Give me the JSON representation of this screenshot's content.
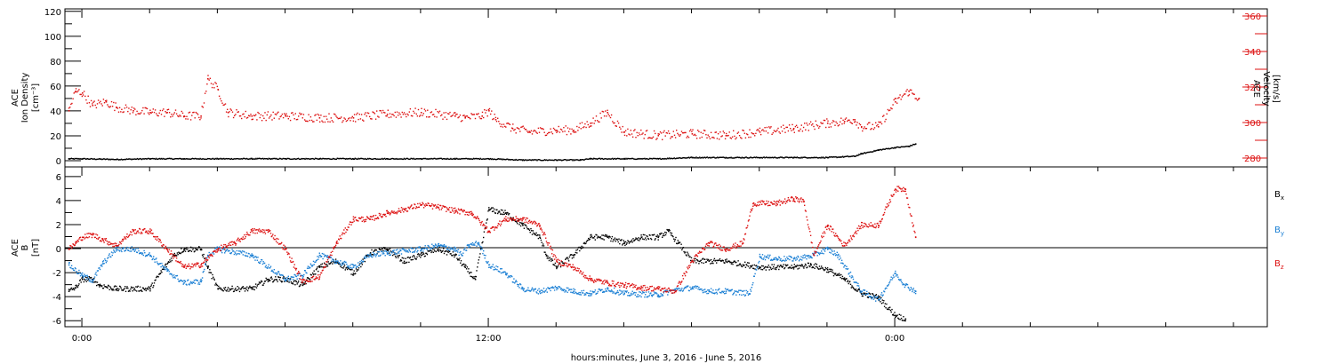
{
  "colors": {
    "black": "#000000",
    "red": "#dd1111",
    "blue": "#1a7fd4"
  },
  "chart_data": [
    {
      "type": "scatter",
      "panel": "top",
      "ylabel_lines": [
        "ACE",
        "Ion Density",
        "[cm⁻³]"
      ],
      "ylabel_right_lines": [
        "ACE",
        "Velocity",
        "[km/s]"
      ],
      "ylim": [
        -5,
        122
      ],
      "ylim_right": [
        275,
        364
      ],
      "yticks": [
        0,
        20,
        40,
        60,
        80,
        100,
        120
      ],
      "yticks_right": [
        280,
        300,
        320,
        340,
        360
      ],
      "xlim_hours": [
        -0.5,
        35
      ],
      "series": [
        {
          "axis": "left",
          "color": "black",
          "points": [
            [
              -0.4,
              2
            ],
            [
              0,
              2
            ],
            [
              1,
              1.5
            ],
            [
              2,
              2
            ],
            [
              3,
              2
            ],
            [
              4,
              2
            ],
            [
              5,
              2
            ],
            [
              6,
              2
            ],
            [
              7,
              2
            ],
            [
              8,
              2
            ],
            [
              9,
              2
            ],
            [
              10,
              2
            ],
            [
              11,
              2
            ],
            [
              12,
              2
            ],
            [
              13,
              1
            ],
            [
              14,
              1
            ],
            [
              14.7,
              1
            ],
            [
              15,
              2
            ],
            [
              16,
              2
            ],
            [
              17,
              2
            ],
            [
              18,
              3
            ],
            [
              19,
              3
            ],
            [
              20,
              3
            ],
            [
              21,
              3
            ],
            [
              22,
              3
            ],
            [
              22.8,
              4
            ],
            [
              23,
              6
            ],
            [
              23.5,
              9
            ],
            [
              24,
              11
            ],
            [
              24.4,
              12
            ],
            [
              24.6,
              14
            ]
          ]
        },
        {
          "axis": "right",
          "color": "red",
          "points": [
            [
              -0.4,
              307
            ],
            [
              -0.2,
              318
            ],
            [
              0,
              317
            ],
            [
              0.3,
              310
            ],
            [
              0.7,
              312
            ],
            [
              1,
              309
            ],
            [
              1.5,
              307
            ],
            [
              2,
              306
            ],
            [
              2.5,
              306
            ],
            [
              3,
              304
            ],
            [
              3.5,
              304
            ],
            [
              3.7,
              325
            ],
            [
              4,
              319
            ],
            [
              4.3,
              306
            ],
            [
              5,
              304
            ],
            [
              6,
              304
            ],
            [
              7,
              303
            ],
            [
              8,
              303
            ],
            [
              9,
              305
            ],
            [
              10,
              306
            ],
            [
              11,
              304
            ],
            [
              11.3,
              303
            ],
            [
              11.8,
              304
            ],
            [
              12,
              307
            ],
            [
              12.2,
              302
            ],
            [
              12.7,
              297
            ],
            [
              13.2,
              295
            ],
            [
              14,
              296
            ],
            [
              14.5,
              296
            ],
            [
              15,
              300
            ],
            [
              15.5,
              306
            ],
            [
              16,
              295
            ],
            [
              17,
              293
            ],
            [
              18,
              294
            ],
            [
              19,
              293
            ],
            [
              20,
              295
            ],
            [
              21,
              297
            ],
            [
              22,
              300
            ],
            [
              22.5,
              301
            ],
            [
              22.8,
              302
            ],
            [
              23,
              298
            ],
            [
              23.5,
              298
            ],
            [
              24,
              312
            ],
            [
              24.4,
              318
            ],
            [
              24.7,
              314
            ]
          ]
        }
      ]
    },
    {
      "type": "scatter",
      "panel": "bottom",
      "ylabel_lines": [
        "ACE",
        "B",
        "[nT]"
      ],
      "ylim": [
        -6.5,
        6.8
      ],
      "yticks": [
        -6,
        -4,
        -2,
        0,
        2,
        4,
        6
      ],
      "legend_position": "right",
      "legend": [
        {
          "label": "B",
          "sub": "x",
          "color": "black"
        },
        {
          "label": "B",
          "sub": "y",
          "color": "blue"
        },
        {
          "label": "B",
          "sub": "z",
          "color": "red"
        }
      ],
      "xlim_hours": [
        -0.5,
        35
      ],
      "xticks_hours": [
        0,
        12,
        24
      ],
      "xtick_labels": [
        "0:00",
        "12:00",
        "0:00"
      ],
      "xlabel": "hours:minutes, June  3, 2016 - June  5, 2016",
      "series": [
        {
          "color": "black",
          "points": [
            [
              -0.4,
              -3.5
            ],
            [
              -0.2,
              -3.2
            ],
            [
              0,
              -2.5
            ],
            [
              0.3,
              -2.5
            ],
            [
              0.5,
              -3
            ],
            [
              1,
              -3.3
            ],
            [
              2,
              -3.3
            ],
            [
              2.3,
              -2
            ],
            [
              2.7,
              -0.5
            ],
            [
              3,
              0
            ],
            [
              3.5,
              0
            ],
            [
              3.7,
              -1.5
            ],
            [
              4,
              -3.3
            ],
            [
              5,
              -3.3
            ],
            [
              5.5,
              -2.5
            ],
            [
              6,
              -2.5
            ],
            [
              6.5,
              -3
            ],
            [
              7,
              -1.5
            ],
            [
              7.5,
              -1
            ],
            [
              8,
              -2
            ],
            [
              8.5,
              -0.3
            ],
            [
              9,
              0
            ],
            [
              9.5,
              -1
            ],
            [
              10,
              -0.5
            ],
            [
              10.5,
              0
            ],
            [
              11,
              -0.5
            ],
            [
              11.3,
              -1.5
            ],
            [
              11.6,
              -2.5
            ],
            [
              12,
              3.3
            ],
            [
              12.5,
              3
            ],
            [
              13,
              2
            ],
            [
              13.5,
              1
            ],
            [
              13.7,
              -0.5
            ],
            [
              14,
              -1.5
            ],
            [
              14.5,
              -0.5
            ],
            [
              15,
              1
            ],
            [
              15.5,
              1
            ],
            [
              16,
              0.5
            ],
            [
              16.5,
              1
            ],
            [
              17,
              1
            ],
            [
              17.3,
              1.5
            ],
            [
              17.6,
              0.5
            ],
            [
              18,
              -1
            ],
            [
              19,
              -1
            ],
            [
              20,
              -1.5
            ],
            [
              21,
              -1.5
            ],
            [
              21.5,
              -1.3
            ],
            [
              22,
              -1.7
            ],
            [
              22.5,
              -2.5
            ],
            [
              23,
              -3.7
            ],
            [
              23.5,
              -4
            ],
            [
              24,
              -5.5
            ],
            [
              24.3,
              -5.8
            ]
          ]
        },
        {
          "color": "blue",
          "points": [
            [
              -0.4,
              -1.3
            ],
            [
              0,
              -2.2
            ],
            [
              0.3,
              -2.6
            ],
            [
              0.6,
              -1.2
            ],
            [
              1,
              0
            ],
            [
              1.5,
              0
            ],
            [
              2,
              -0.5
            ],
            [
              2.5,
              -1.8
            ],
            [
              3,
              -2.8
            ],
            [
              3.5,
              -2.7
            ],
            [
              3.7,
              -0.5
            ],
            [
              4,
              0
            ],
            [
              5,
              -0.5
            ],
            [
              6,
              -2.5
            ],
            [
              6.5,
              -2.2
            ],
            [
              7,
              -0.5
            ],
            [
              7.5,
              -1
            ],
            [
              8,
              -1.5
            ],
            [
              8.5,
              -0.5
            ],
            [
              9,
              -0.3
            ],
            [
              10,
              0
            ],
            [
              10.5,
              0.3
            ],
            [
              11,
              0
            ],
            [
              11.2,
              -0.5
            ],
            [
              11.4,
              0.3
            ],
            [
              11.7,
              0.5
            ],
            [
              12,
              -1.3
            ],
            [
              12.5,
              -2
            ],
            [
              13,
              -3.3
            ],
            [
              13.5,
              -3.5
            ],
            [
              14,
              -3.2
            ],
            [
              14.5,
              -3.5
            ],
            [
              15,
              -3.7
            ],
            [
              15.5,
              -3.3
            ],
            [
              16,
              -3.7
            ],
            [
              17,
              -3.8
            ],
            [
              17.5,
              -3.4
            ],
            [
              18,
              -3.2
            ],
            [
              18.5,
              -3.5
            ],
            [
              19,
              -3.5
            ],
            [
              19.7,
              -3.7
            ],
            [
              20,
              -0.6
            ],
            [
              20.5,
              -0.8
            ],
            [
              21,
              -0.8
            ],
            [
              21.5,
              -0.6
            ],
            [
              22,
              0
            ],
            [
              22.3,
              -0.5
            ],
            [
              23,
              -3.5
            ],
            [
              23.5,
              -4.2
            ],
            [
              24,
              -2
            ],
            [
              24.3,
              -3
            ],
            [
              24.6,
              -3.5
            ]
          ]
        },
        {
          "color": "red",
          "points": [
            [
              -0.4,
              0
            ],
            [
              -0.2,
              0.5
            ],
            [
              0,
              1
            ],
            [
              0.3,
              1.2
            ],
            [
              0.6,
              0.8
            ],
            [
              1,
              0.3
            ],
            [
              1.5,
              1.5
            ],
            [
              2,
              1.5
            ],
            [
              2.5,
              0
            ],
            [
              3,
              -1.5
            ],
            [
              3.5,
              -1.3
            ],
            [
              4,
              0
            ],
            [
              4.5,
              0.5
            ],
            [
              5,
              1.5
            ],
            [
              5.5,
              1.5
            ],
            [
              6,
              0
            ],
            [
              6.5,
              -2.7
            ],
            [
              7,
              -2.3
            ],
            [
              7.5,
              0.5
            ],
            [
              8,
              2.5
            ],
            [
              8.5,
              2.5
            ],
            [
              9,
              3
            ],
            [
              9.5,
              3.3
            ],
            [
              10,
              3.7
            ],
            [
              10.5,
              3.5
            ],
            [
              11,
              3.2
            ],
            [
              11.5,
              3
            ],
            [
              12,
              1.5
            ],
            [
              12.5,
              2.5
            ],
            [
              13,
              2.5
            ],
            [
              13.5,
              2
            ],
            [
              14,
              -1
            ],
            [
              14.5,
              -1.5
            ],
            [
              15,
              -2.5
            ],
            [
              15.5,
              -2.8
            ],
            [
              16,
              -3
            ],
            [
              16.5,
              -3.2
            ],
            [
              17,
              -3.3
            ],
            [
              17.5,
              -3.5
            ],
            [
              18,
              -1
            ],
            [
              18.5,
              0.5
            ],
            [
              19,
              0
            ],
            [
              19.5,
              0.5
            ],
            [
              19.8,
              3.8
            ],
            [
              20.5,
              3.8
            ],
            [
              21,
              4.2
            ],
            [
              21.3,
              4
            ],
            [
              21.6,
              -0.5
            ],
            [
              22,
              2
            ],
            [
              22.5,
              0.3
            ],
            [
              23,
              2
            ],
            [
              23.5,
              2
            ],
            [
              24,
              5
            ],
            [
              24.3,
              5
            ],
            [
              24.6,
              1
            ]
          ]
        }
      ]
    }
  ]
}
